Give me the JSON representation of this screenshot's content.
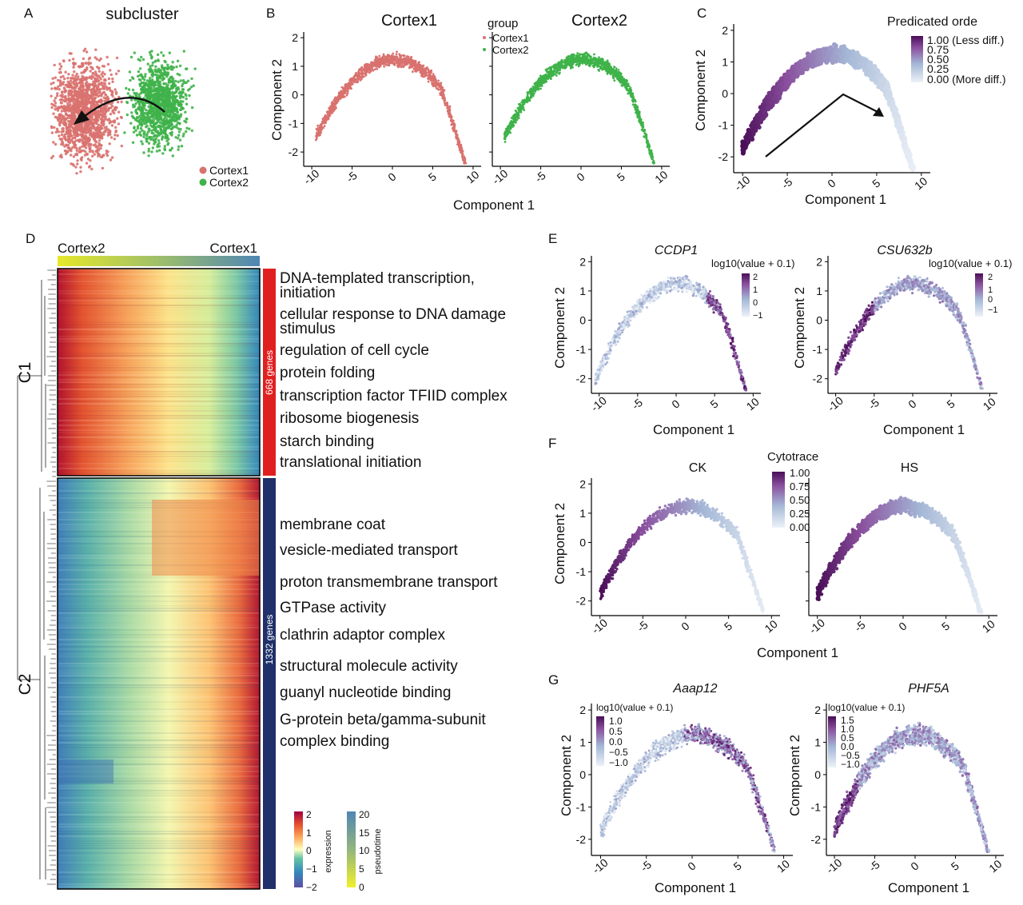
{
  "colors": {
    "cortex1": "#d9726f",
    "cortex2": "#3fb34a",
    "purple_dark": "#4a0e57",
    "purple_light": "#e8eef6",
    "c1_bar": "#e02020",
    "c2_bar": "#20306a"
  },
  "panels": {
    "A": {
      "letter": "A",
      "title": "subcluster",
      "legend": [
        "Cortex1",
        "Cortex2"
      ]
    },
    "B": {
      "letter": "B",
      "facet_titles": [
        "Cortex1",
        "Cortex2"
      ],
      "legend_title": "group",
      "legend": [
        "Cortex1",
        "Cortex2"
      ],
      "xlabel": "Component 1",
      "ylabel": "Component 2"
    },
    "C": {
      "letter": "C",
      "legend_title": "Predicated orde",
      "legend_labels": [
        "1.00 (Less diff.)",
        "0.75",
        "0.50",
        "0.25",
        "0.00 (More diff.)"
      ],
      "xlabel": "Component 1",
      "ylabel": "Component 2"
    },
    "D": {
      "letter": "D",
      "top_left_label": "Cortex2",
      "top_right_label": "Cortex1",
      "cluster_labels": [
        "C1",
        "C2"
      ],
      "c1_gene_count": "668 genes",
      "c2_gene_count": "1332 genes",
      "c1_terms": [
        "DNA-templated transcription,",
        "initiation",
        "cellular response to DNA damage",
        "stimulus",
        "regulation of cell cycle",
        "protein folding",
        "transcription factor TFIID complex",
        "ribosome biogenesis",
        "starch binding",
        "translational initiation"
      ],
      "c2_terms": [
        "membrane coat",
        "vesicle-mediated transport",
        "proton transmembrane transport",
        "GTPase activity",
        "clathrin adaptor complex",
        "structural molecule activity",
        "guanyl nucleotide binding",
        "G-protein beta/gamma-subunit",
        "complex binding"
      ],
      "expression_legend": {
        "title": "expression",
        "ticks": [
          "2",
          "1",
          "0",
          "−1",
          "−2"
        ]
      },
      "pseudotime_legend": {
        "title": "pseudotime",
        "ticks": [
          "20",
          "15",
          "10",
          "5",
          "0"
        ]
      }
    },
    "E": {
      "letter": "E",
      "genes": [
        "CCDP1",
        "CSU632b"
      ],
      "legend_title": "log10(value + 0.1)",
      "legend_ticks": [
        "2",
        "1",
        "0",
        "−1"
      ],
      "xlabel": "Component 1",
      "ylabel": "Component 2"
    },
    "F": {
      "letter": "F",
      "facet_titles": [
        "CK",
        "HS"
      ],
      "legend_title": "Cytotrace",
      "legend_ticks": [
        "1.00",
        "0.75",
        "0.50",
        "0.25",
        "0.00"
      ],
      "xlabel": "Component 1",
      "ylabel": "Component 2"
    },
    "G": {
      "letter": "G",
      "genes": [
        "Aaap12",
        "PHF5A"
      ],
      "legend_title": "log10(value + 0.1)",
      "legend_ticks_left": [
        "1.0",
        "0.5",
        "0.0",
        "−0.5",
        "−1.0"
      ],
      "legend_ticks_right": [
        "1.5",
        "1.0",
        "0.5",
        "0.0",
        "−0.5",
        "−1.0"
      ],
      "xlabel": "Component 1",
      "ylabel": "Component 2"
    }
  },
  "chart_data": [
    {
      "panel": "A",
      "type": "scatter",
      "title": "subcluster",
      "description_series": [
        {
          "name": "Cortex1",
          "color": "#d9726f"
        },
        {
          "name": "Cortex2",
          "color": "#3fb34a"
        }
      ]
    },
    {
      "panel": "B",
      "type": "scatter",
      "xlabel": "Component 1",
      "ylabel": "Component 2",
      "xlim": [
        -11,
        11
      ],
      "ylim": [
        -2.4,
        2.2
      ],
      "xticks": [
        -10,
        -5,
        0,
        5,
        10
      ],
      "yticks": [
        -2,
        -1,
        0,
        1,
        2
      ],
      "series": [
        {
          "name": "Cortex1",
          "facet": "Cortex1"
        },
        {
          "name": "Cortex2",
          "facet": "Cortex2"
        }
      ]
    },
    {
      "panel": "C",
      "type": "scatter",
      "xlabel": "Component 1",
      "ylabel": "Component 2",
      "xlim": [
        -11,
        11
      ],
      "ylim": [
        -2.5,
        2.2
      ],
      "xticks": [
        -10,
        -5,
        0,
        5,
        10
      ],
      "yticks": [
        -2,
        -1,
        0,
        1,
        2
      ],
      "color_scale": "Predicated orde",
      "color_range": [
        0,
        1
      ]
    },
    {
      "panel": "D",
      "type": "heatmap",
      "clusters": [
        {
          "name": "C1",
          "genes": 668
        },
        {
          "name": "C2",
          "genes": 1332
        }
      ],
      "expression_range": [
        -2,
        2
      ],
      "pseudotime_range": [
        0,
        20
      ]
    },
    {
      "panel": "E",
      "type": "scatter",
      "facets": [
        "CCDP1",
        "CSU632b"
      ],
      "xticks": [
        -10,
        -5,
        0,
        5,
        10
      ],
      "yticks": [
        -2,
        -1,
        0,
        1,
        2
      ],
      "color_range": [
        -1,
        2
      ]
    },
    {
      "panel": "F",
      "type": "scatter",
      "facets": [
        "CK",
        "HS"
      ],
      "xticks": [
        -10,
        -5,
        0,
        5,
        10
      ],
      "yticks": [
        -2,
        -1,
        0,
        1,
        2
      ],
      "color_range": [
        0,
        1
      ]
    },
    {
      "panel": "G",
      "type": "scatter",
      "facets": [
        "Aaap12",
        "PHF5A"
      ],
      "xticks": [
        -10,
        -5,
        0,
        5,
        10
      ],
      "yticks": [
        -2,
        -1,
        0,
        1,
        2
      ],
      "color_range_left": [
        -1,
        1
      ],
      "color_range_right": [
        -1,
        1.5
      ]
    }
  ]
}
